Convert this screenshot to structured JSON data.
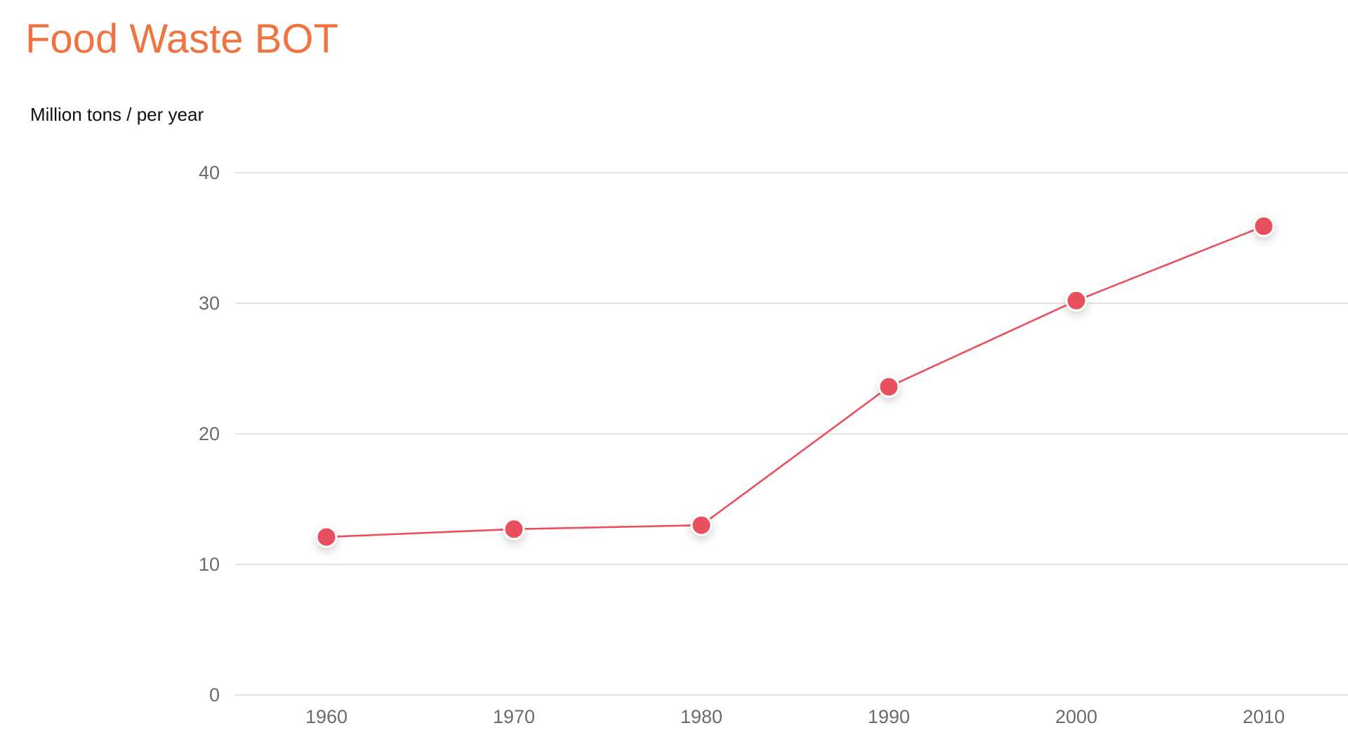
{
  "chart_data": {
    "type": "line",
    "title": "Food Waste BOT",
    "ylabel": "Million tons / per year",
    "xlabel": "",
    "categories": [
      "1960",
      "1970",
      "1980",
      "1990",
      "2000",
      "2010"
    ],
    "series": [
      {
        "values": [
          12.1,
          12.7,
          13.0,
          23.6,
          30.2,
          35.9
        ]
      }
    ],
    "ylim": [
      0,
      40
    ],
    "yticks": [
      0,
      10,
      20,
      30,
      40
    ],
    "grid": true,
    "legend": "none",
    "colors": {
      "title": "#F07442",
      "series": "#E8505E",
      "grid": "#D9D9D9",
      "tick_text": "#6B6B6B",
      "axis_label": "#111111"
    }
  }
}
